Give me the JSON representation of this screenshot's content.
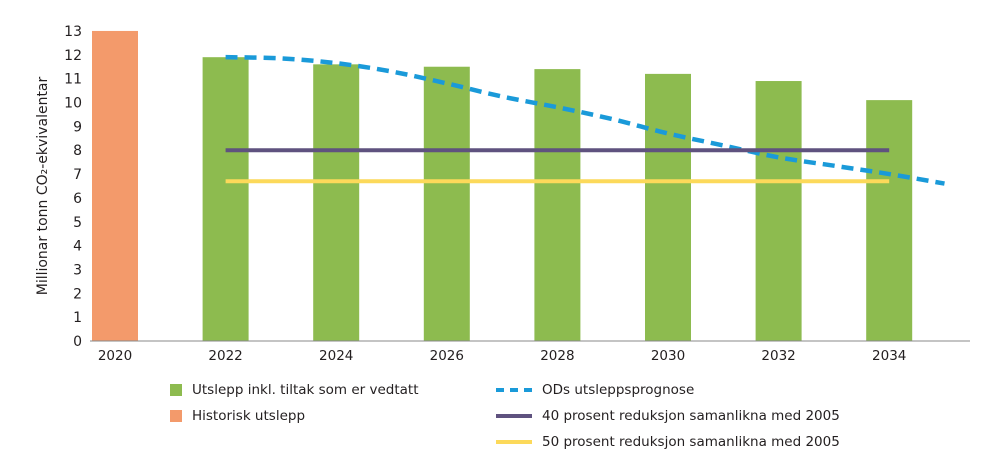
{
  "chart_data": {
    "type": "bar",
    "ylabel": "Millionar tonn CO₂-ekvivalentar",
    "ylim": [
      0,
      13
    ],
    "yticks": [
      0,
      1,
      2,
      3,
      4,
      5,
      6,
      7,
      8,
      9,
      10,
      11,
      12,
      13
    ],
    "xticks": [
      "2020",
      "2022",
      "2024",
      "2026",
      "2028",
      "2030",
      "2032",
      "2034"
    ],
    "grid": false,
    "legend_placement": "bottom",
    "series": [
      {
        "name": "Historisk utslepp",
        "type": "bar",
        "color": "#f39a6b",
        "x": [
          2020
        ],
        "values": [
          13.0
        ]
      },
      {
        "name": "Utslepp inkl. tiltak som er vedtatt",
        "type": "bar",
        "color": "#8dbb4f",
        "x": [
          2022,
          2024,
          2026,
          2028,
          2030,
          2032,
          2034
        ],
        "values": [
          11.9,
          11.6,
          11.5,
          11.4,
          11.2,
          10.9,
          10.1
        ]
      },
      {
        "name": "ODs utsleppsprognose",
        "type": "line",
        "style": "dashed",
        "color": "#1a9ad9",
        "x": [
          2022,
          2023,
          2024,
          2025,
          2026,
          2027,
          2028,
          2029,
          2030,
          2031,
          2032,
          2033,
          2034,
          2035
        ],
        "values": [
          11.9,
          11.85,
          11.65,
          11.3,
          10.8,
          10.25,
          9.8,
          9.3,
          8.7,
          8.2,
          7.7,
          7.35,
          7.0,
          6.6
        ]
      },
      {
        "name": "40 prosent reduksjon samanlikna med 2005",
        "type": "line",
        "color": "#5f527f",
        "x": [
          2022,
          2034
        ],
        "values": [
          8.0,
          8.0
        ]
      },
      {
        "name": "50 prosent reduksjon samanlikna med 2005",
        "type": "line",
        "color": "#fcd95a",
        "x": [
          2022,
          2034
        ],
        "values": [
          6.7,
          6.7
        ]
      }
    ]
  }
}
